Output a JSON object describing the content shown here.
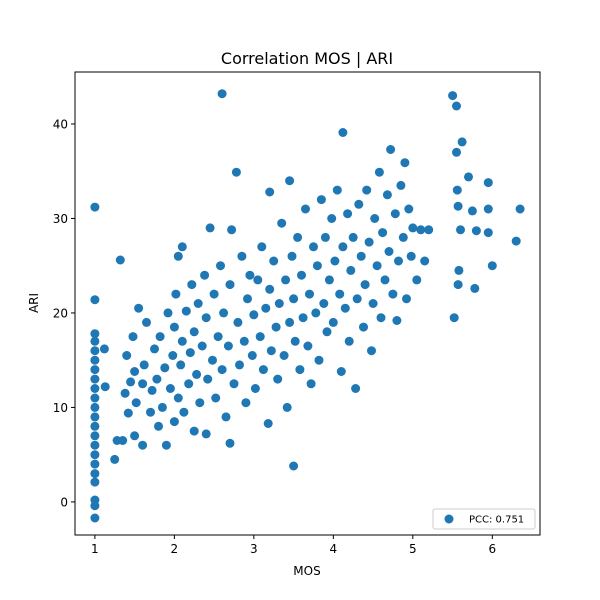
{
  "chart_data": {
    "type": "scatter",
    "title": "Correlation MOS | ARI",
    "xlabel": "MOS",
    "ylabel": "ARI",
    "xlim": [
      0.75,
      6.6
    ],
    "ylim": [
      -3.5,
      45.5
    ],
    "xticks": [
      1,
      2,
      3,
      4,
      5,
      6
    ],
    "yticks": [
      0,
      10,
      20,
      30,
      40
    ],
    "grid": false,
    "legend_position": "lower-right",
    "color": "#1f77b4",
    "series": [
      {
        "name": "PCC: 0.751",
        "points": [
          [
            1.0,
            -1.7
          ],
          [
            1.0,
            -0.4
          ],
          [
            1.0,
            0.2
          ],
          [
            1.0,
            2.1
          ],
          [
            1.0,
            3.0
          ],
          [
            1.0,
            4.0
          ],
          [
            1.0,
            5.0
          ],
          [
            1.0,
            6.0
          ],
          [
            1.0,
            7.0
          ],
          [
            1.0,
            8.0
          ],
          [
            1.0,
            9.0
          ],
          [
            1.0,
            10.0
          ],
          [
            1.0,
            11.0
          ],
          [
            1.0,
            12.0
          ],
          [
            1.0,
            13.0
          ],
          [
            1.0,
            14.0
          ],
          [
            1.0,
            15.0
          ],
          [
            1.0,
            16.0
          ],
          [
            1.0,
            17.0
          ],
          [
            1.0,
            17.8
          ],
          [
            1.0,
            21.4
          ],
          [
            1.0,
            31.2
          ],
          [
            1.12,
            16.2
          ],
          [
            1.13,
            12.2
          ],
          [
            1.25,
            4.5
          ],
          [
            1.28,
            6.5
          ],
          [
            1.32,
            25.6
          ],
          [
            1.35,
            6.5
          ],
          [
            1.38,
            11.5
          ],
          [
            1.4,
            15.5
          ],
          [
            1.42,
            9.4
          ],
          [
            1.45,
            12.7
          ],
          [
            1.48,
            17.5
          ],
          [
            1.5,
            7.0
          ],
          [
            1.5,
            13.8
          ],
          [
            1.52,
            10.5
          ],
          [
            1.55,
            20.5
          ],
          [
            1.6,
            6.0
          ],
          [
            1.6,
            12.5
          ],
          [
            1.62,
            14.5
          ],
          [
            1.65,
            19.0
          ],
          [
            1.7,
            9.5
          ],
          [
            1.72,
            11.8
          ],
          [
            1.75,
            16.2
          ],
          [
            1.78,
            13.0
          ],
          [
            1.8,
            8.0
          ],
          [
            1.82,
            17.5
          ],
          [
            1.85,
            10.0
          ],
          [
            1.88,
            14.2
          ],
          [
            1.9,
            6.0
          ],
          [
            1.92,
            20.0
          ],
          [
            1.95,
            12.0
          ],
          [
            1.98,
            15.5
          ],
          [
            2.0,
            8.5
          ],
          [
            2.0,
            18.5
          ],
          [
            2.02,
            22.0
          ],
          [
            2.05,
            11.0
          ],
          [
            2.05,
            26.0
          ],
          [
            2.08,
            14.5
          ],
          [
            2.1,
            17.0
          ],
          [
            2.1,
            27.0
          ],
          [
            2.12,
            9.5
          ],
          [
            2.15,
            20.2
          ],
          [
            2.18,
            12.5
          ],
          [
            2.2,
            15.8
          ],
          [
            2.22,
            23.0
          ],
          [
            2.25,
            7.5
          ],
          [
            2.25,
            18.0
          ],
          [
            2.28,
            13.5
          ],
          [
            2.3,
            21.0
          ],
          [
            2.32,
            10.5
          ],
          [
            2.35,
            16.5
          ],
          [
            2.38,
            24.0
          ],
          [
            2.4,
            7.2
          ],
          [
            2.4,
            19.5
          ],
          [
            2.42,
            13.0
          ],
          [
            2.45,
            29.0
          ],
          [
            2.48,
            15.0
          ],
          [
            2.5,
            22.0
          ],
          [
            2.52,
            11.0
          ],
          [
            2.55,
            17.5
          ],
          [
            2.58,
            25.0
          ],
          [
            2.6,
            43.2
          ],
          [
            2.6,
            14.0
          ],
          [
            2.62,
            20.0
          ],
          [
            2.65,
            9.0
          ],
          [
            2.68,
            16.5
          ],
          [
            2.7,
            6.2
          ],
          [
            2.7,
            23.0
          ],
          [
            2.72,
            28.8
          ],
          [
            2.75,
            12.5
          ],
          [
            2.78,
            34.9
          ],
          [
            2.8,
            19.0
          ],
          [
            2.82,
            14.5
          ],
          [
            2.85,
            26.0
          ],
          [
            2.88,
            17.0
          ],
          [
            2.9,
            10.5
          ],
          [
            2.92,
            21.5
          ],
          [
            2.95,
            24.0
          ],
          [
            2.98,
            15.5
          ],
          [
            3.0,
            19.8
          ],
          [
            3.02,
            12.0
          ],
          [
            3.05,
            23.5
          ],
          [
            3.08,
            17.5
          ],
          [
            3.1,
            27.0
          ],
          [
            3.12,
            14.0
          ],
          [
            3.15,
            20.5
          ],
          [
            3.18,
            8.3
          ],
          [
            3.2,
            32.8
          ],
          [
            3.2,
            22.5
          ],
          [
            3.22,
            16.0
          ],
          [
            3.25,
            25.5
          ],
          [
            3.28,
            18.5
          ],
          [
            3.3,
            13.0
          ],
          [
            3.32,
            21.0
          ],
          [
            3.35,
            29.5
          ],
          [
            3.38,
            15.5
          ],
          [
            3.4,
            23.5
          ],
          [
            3.42,
            10.0
          ],
          [
            3.45,
            34.0
          ],
          [
            3.45,
            19.0
          ],
          [
            3.48,
            26.0
          ],
          [
            3.5,
            3.8
          ],
          [
            3.5,
            21.5
          ],
          [
            3.52,
            17.0
          ],
          [
            3.55,
            28.0
          ],
          [
            3.58,
            14.0
          ],
          [
            3.6,
            24.0
          ],
          [
            3.62,
            19.5
          ],
          [
            3.65,
            31.0
          ],
          [
            3.68,
            16.5
          ],
          [
            3.7,
            22.0
          ],
          [
            3.72,
            12.5
          ],
          [
            3.75,
            27.0
          ],
          [
            3.78,
            20.0
          ],
          [
            3.8,
            25.0
          ],
          [
            3.82,
            15.0
          ],
          [
            3.85,
            32.0
          ],
          [
            3.88,
            21.0
          ],
          [
            3.9,
            28.0
          ],
          [
            3.92,
            18.0
          ],
          [
            3.95,
            23.5
          ],
          [
            3.98,
            30.0
          ],
          [
            4.0,
            19.0
          ],
          [
            4.02,
            25.5
          ],
          [
            4.05,
            33.0
          ],
          [
            4.08,
            22.0
          ],
          [
            4.1,
            13.8
          ],
          [
            4.12,
            39.1
          ],
          [
            4.12,
            27.0
          ],
          [
            4.15,
            20.5
          ],
          [
            4.18,
            30.5
          ],
          [
            4.2,
            17.0
          ],
          [
            4.22,
            24.5
          ],
          [
            4.25,
            28.0
          ],
          [
            4.28,
            12.0
          ],
          [
            4.3,
            21.5
          ],
          [
            4.32,
            31.5
          ],
          [
            4.35,
            26.0
          ],
          [
            4.38,
            18.5
          ],
          [
            4.4,
            23.0
          ],
          [
            4.42,
            33.0
          ],
          [
            4.45,
            27.5
          ],
          [
            4.48,
            16.0
          ],
          [
            4.5,
            21.0
          ],
          [
            4.52,
            30.0
          ],
          [
            4.55,
            25.0
          ],
          [
            4.58,
            34.9
          ],
          [
            4.6,
            19.5
          ],
          [
            4.62,
            28.5
          ],
          [
            4.65,
            23.5
          ],
          [
            4.68,
            32.5
          ],
          [
            4.7,
            26.5
          ],
          [
            4.72,
            37.3
          ],
          [
            4.75,
            22.0
          ],
          [
            4.78,
            30.5
          ],
          [
            4.8,
            19.2
          ],
          [
            4.82,
            25.5
          ],
          [
            4.85,
            33.5
          ],
          [
            4.88,
            28.0
          ],
          [
            4.9,
            35.9
          ],
          [
            4.92,
            21.5
          ],
          [
            4.95,
            31.0
          ],
          [
            4.98,
            26.0
          ],
          [
            5.0,
            29.0
          ],
          [
            5.05,
            23.5
          ],
          [
            5.1,
            28.8
          ],
          [
            5.15,
            25.5
          ],
          [
            5.2,
            28.8
          ],
          [
            5.5,
            43.0
          ],
          [
            5.52,
            19.5
          ],
          [
            5.55,
            41.9
          ],
          [
            5.55,
            37.0
          ],
          [
            5.56,
            33.0
          ],
          [
            5.57,
            31.3
          ],
          [
            5.57,
            23.0
          ],
          [
            5.58,
            24.5
          ],
          [
            5.6,
            28.8
          ],
          [
            5.62,
            38.1
          ],
          [
            5.7,
            34.4
          ],
          [
            5.75,
            30.8
          ],
          [
            5.78,
            22.6
          ],
          [
            5.8,
            28.7
          ],
          [
            5.95,
            33.8
          ],
          [
            5.95,
            31.0
          ],
          [
            5.95,
            28.5
          ],
          [
            6.0,
            25.0
          ],
          [
            6.3,
            27.6
          ],
          [
            6.35,
            31.0
          ]
        ]
      }
    ]
  }
}
